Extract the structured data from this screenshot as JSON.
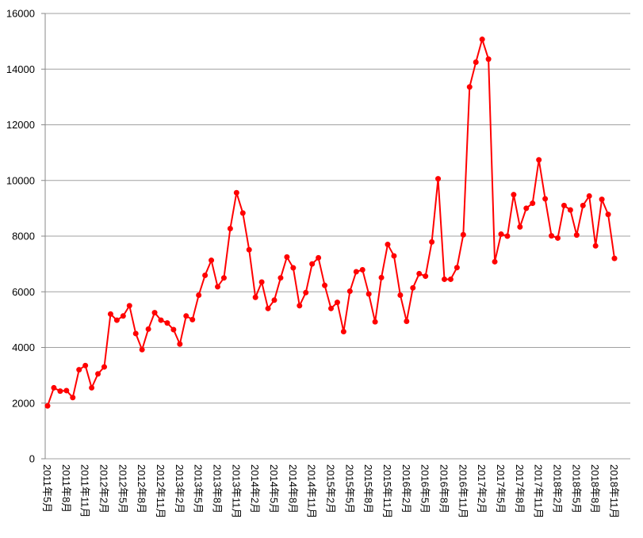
{
  "chart_data": {
    "type": "line",
    "categories": [
      "2011年5月",
      null,
      null,
      "2011年8月",
      null,
      null,
      "2011年11月",
      null,
      null,
      "2012年2月",
      null,
      null,
      "2012年5月",
      null,
      null,
      "2012年8月",
      null,
      null,
      "2012年11月",
      null,
      null,
      "2013年2月",
      null,
      null,
      "2013年5月",
      null,
      null,
      "2013年8月",
      null,
      null,
      "2013年11月",
      null,
      null,
      "2014年2月",
      null,
      null,
      "2014年5月",
      null,
      null,
      "2014年8月",
      null,
      null,
      "2014年11月",
      null,
      null,
      "2015年2月",
      null,
      null,
      "2015年5月",
      null,
      null,
      "2015年8月",
      null,
      null,
      "2015年11月",
      null,
      null,
      "2016年2月",
      null,
      null,
      "2016年5月",
      null,
      null,
      "2016年8月",
      null,
      null,
      "2016年11月",
      null,
      null,
      "2017年2月",
      null,
      null,
      "2017年5月",
      null,
      null,
      "2017年8月",
      null,
      null,
      "2017年11月",
      null,
      null,
      "2018年2月",
      null,
      null,
      "2018年5月",
      null,
      null,
      "2018年8月",
      null,
      null,
      "2018年11月"
    ],
    "values": [
      1900,
      2550,
      2430,
      2450,
      2200,
      3200,
      3350,
      2550,
      3050,
      3300,
      5200,
      4980,
      5130,
      5500,
      4500,
      3920,
      4660,
      5250,
      4980,
      4880,
      4640,
      4120,
      5130,
      5000,
      5880,
      6590,
      7130,
      6180,
      6500,
      8270,
      9560,
      8830,
      7510,
      5800,
      6350,
      5400,
      5700,
      6500,
      7250,
      6860,
      5500,
      5970,
      7000,
      7220,
      6230,
      5400,
      5620,
      4570,
      6020,
      6720,
      6790,
      5920,
      4920,
      6510,
      7700,
      7290,
      5880,
      4940,
      6140,
      6650,
      6560,
      7790,
      10060,
      6450,
      6450,
      6870,
      8050,
      13360,
      14250,
      15070,
      14360,
      7080,
      8070,
      8000,
      9490,
      8330,
      9000,
      9180,
      10740,
      9340,
      8010,
      7930,
      9100,
      8940,
      8040,
      9100,
      9440,
      7650,
      9320,
      8780,
      7200
    ],
    "color": "#ff0000",
    "ylim": [
      0,
      16000
    ],
    "yticks": [
      0,
      2000,
      4000,
      6000,
      8000,
      10000,
      12000,
      14000,
      16000
    ],
    "grid": true
  }
}
